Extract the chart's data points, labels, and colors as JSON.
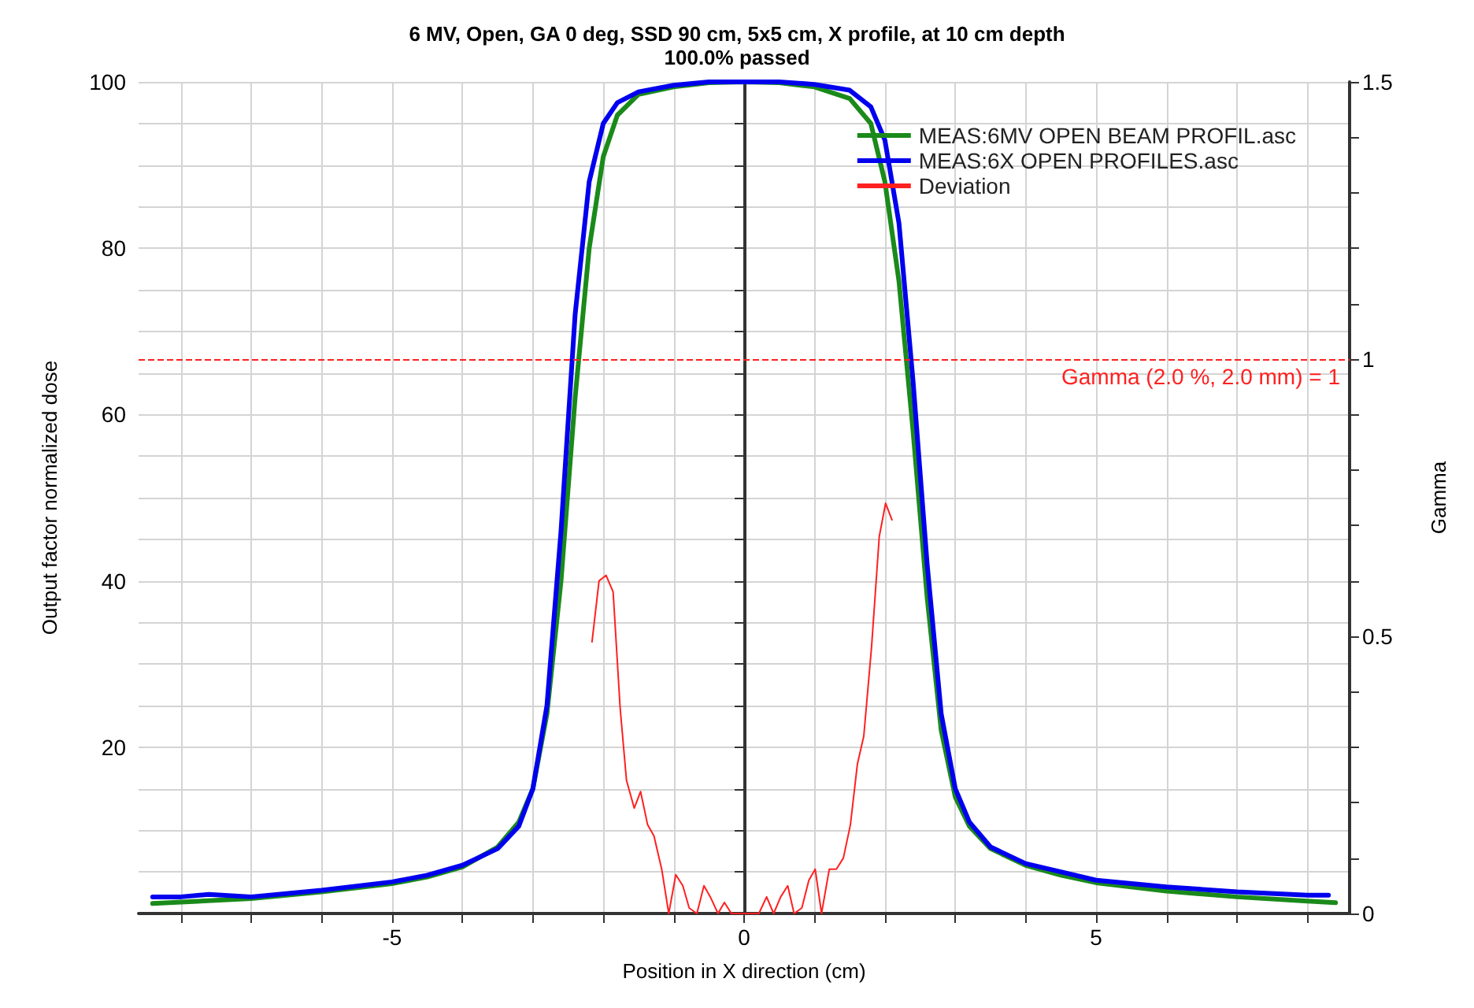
{
  "chart_data": {
    "type": "line",
    "title": "6 MV, Open, GA 0 deg, SSD 90 cm, 5x5 cm, X profile, at 10 cm depth",
    "subtitle": "100.0% passed",
    "xlabel": "Position in X direction (cm)",
    "ylabel": "Output factor normalized dose",
    "y2label": "Gamma",
    "xlim": [
      -8.6,
      8.6
    ],
    "xticks": [
      {
        "value": -8,
        "label": null
      },
      {
        "value": -7,
        "label": null
      },
      {
        "value": -6,
        "label": null
      },
      -5,
      {
        "value": -4,
        "label": null
      },
      {
        "value": -3,
        "label": null
      },
      {
        "value": -2,
        "label": null
      },
      {
        "value": -1,
        "label": null
      },
      0,
      {
        "value": 1,
        "label": null
      },
      {
        "value": 2,
        "label": null
      },
      {
        "value": 3,
        "label": null
      },
      {
        "value": 4,
        "label": null
      },
      5,
      {
        "value": 6,
        "label": null
      },
      {
        "value": 7,
        "label": null
      },
      {
        "value": 8,
        "label": null
      }
    ],
    "ylim": [
      0,
      100
    ],
    "yticks": [
      {
        "value": 5,
        "label": null
      },
      {
        "value": 10,
        "label": null
      },
      {
        "value": 15,
        "label": null
      },
      20,
      {
        "value": 25,
        "label": null
      },
      {
        "value": 30,
        "label": null
      },
      {
        "value": 35,
        "label": null
      },
      40,
      {
        "value": 45,
        "label": null
      },
      {
        "value": 50,
        "label": null
      },
      {
        "value": 55,
        "label": null
      },
      60,
      {
        "value": 65,
        "label": null
      },
      {
        "value": 70,
        "label": null
      },
      {
        "value": 75,
        "label": null
      },
      80,
      {
        "value": 85,
        "label": null
      },
      {
        "value": 90,
        "label": null
      },
      {
        "value": 95,
        "label": null
      },
      100
    ],
    "y2lim": [
      0,
      1.5
    ],
    "y2ticks": [
      0,
      {
        "value": 0.1,
        "label": null
      },
      {
        "value": 0.2,
        "label": null
      },
      {
        "value": 0.3,
        "label": null
      },
      {
        "value": 0.4,
        "label": null
      },
      0.5,
      {
        "value": 0.6,
        "label": null
      },
      {
        "value": 0.7,
        "label": null
      },
      {
        "value": 0.8,
        "label": null
      },
      {
        "value": 0.9,
        "label": null
      },
      1,
      {
        "value": 1.1,
        "label": null
      },
      {
        "value": 1.2,
        "label": null
      },
      {
        "value": 1.3,
        "label": null
      },
      {
        "value": 1.4,
        "label": null
      },
      1.5
    ],
    "grid": true,
    "legend": "top right",
    "marker": "none",
    "line_style": "solid",
    "ref_lines": [
      {
        "axis": "y2",
        "value": 1,
        "label": "Gamma (2.0 %, 2.0 mm) = 1",
        "color": "#ff2020",
        "line_style": "dashed"
      }
    ],
    "series": [
      {
        "name": "MEAS:6MV OPEN BEAM PROFIL.asc",
        "color": "#1a8a1a",
        "x": [
          -8.4,
          -7,
          -6,
          -5,
          -4.5,
          -4,
          -3.5,
          -3.2,
          -3,
          -2.8,
          -2.6,
          -2.4,
          -2.2,
          -2,
          -1.8,
          -1.5,
          -1,
          -0.5,
          0,
          0.5,
          1,
          1.5,
          1.8,
          2,
          2.2,
          2.4,
          2.6,
          2.8,
          3,
          3.2,
          3.5,
          4,
          4.5,
          5,
          6,
          7,
          8,
          8.4
        ],
        "values": [
          1.2,
          1.8,
          2.6,
          3.6,
          4.4,
          5.6,
          8,
          11,
          15,
          24,
          40,
          62,
          80,
          91,
          96,
          98.5,
          99.4,
          99.9,
          100,
          99.9,
          99.4,
          98,
          95,
          88,
          76,
          58,
          38,
          22,
          14,
          10.5,
          7.8,
          5.8,
          4.6,
          3.7,
          2.7,
          2,
          1.5,
          1.3
        ]
      },
      {
        "name": "MEAS:6X OPEN PROFILES.asc",
        "color": "#0000ee",
        "x": [
          -8.4,
          -8,
          -7.6,
          -7,
          -6.5,
          -6,
          -5,
          -4.5,
          -4,
          -3.5,
          -3.2,
          -3,
          -2.8,
          -2.6,
          -2.4,
          -2.2,
          -2,
          -1.8,
          -1.5,
          -1,
          -0.5,
          0,
          0.5,
          1,
          1.5,
          1.8,
          2,
          2.2,
          2.4,
          2.6,
          2.8,
          3,
          3.2,
          3.5,
          4,
          4.5,
          5,
          6,
          7,
          8,
          8.3
        ],
        "values": [
          2,
          2,
          2.3,
          2,
          2.4,
          2.8,
          3.8,
          4.6,
          5.8,
          7.8,
          10.5,
          15,
          25,
          46,
          72,
          88,
          95,
          97.5,
          98.8,
          99.6,
          100,
          100,
          100,
          99.7,
          99,
          97,
          93,
          83,
          64,
          42,
          24,
          15,
          11,
          8,
          6,
          5,
          4,
          3.2,
          2.6,
          2.2,
          2.2
        ]
      },
      {
        "name": "Deviation",
        "color": "#ff2020",
        "axis": "y2",
        "x": [
          -2.16,
          -2.06,
          -1.96,
          -1.86,
          -1.76,
          -1.67,
          -1.56,
          -1.47,
          -1.37,
          -1.28,
          -1.17,
          -1.07,
          -0.97,
          -0.87,
          -0.78,
          -0.67,
          -0.57,
          -0.48,
          -0.37,
          -0.28,
          -0.18,
          0.21,
          0.32,
          0.42,
          0.52,
          0.62,
          0.71,
          0.82,
          0.92,
          1.01,
          1.1,
          1.21,
          1.31,
          1.41,
          1.51,
          1.61,
          1.7,
          1.81,
          1.92,
          2.01,
          2.1
        ],
        "values": [
          0.49,
          0.6,
          0.61,
          0.58,
          0.37,
          0.24,
          0.19,
          0.22,
          0.16,
          0.14,
          0.08,
          0,
          0.07,
          0.05,
          0.01,
          0,
          0.05,
          0.03,
          0,
          0.02,
          0,
          0,
          0.03,
          0,
          0.03,
          0.05,
          0,
          0.01,
          0.06,
          0.08,
          0,
          0.08,
          0.08,
          0.1,
          0.16,
          0.27,
          0.32,
          0.48,
          0.68,
          0.74,
          0.71
        ]
      }
    ]
  }
}
